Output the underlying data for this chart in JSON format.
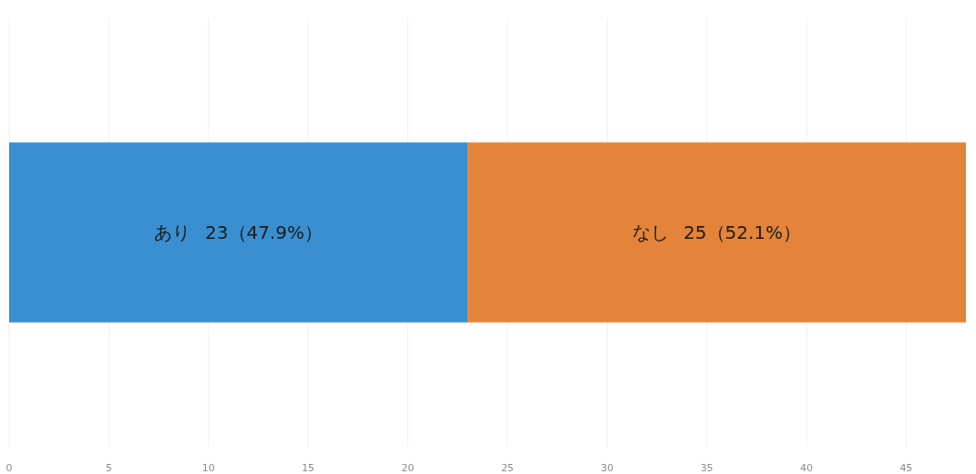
{
  "chart_data": {
    "type": "bar",
    "orientation": "horizontal",
    "stacked": true,
    "categories": [
      null
    ],
    "series": [
      {
        "name": "あり",
        "color": "#3a8fd0",
        "values": [
          23
        ],
        "value_labels": [
          "23（47.9%）"
        ]
      },
      {
        "name": "なし",
        "color": "#e3843a",
        "values": [
          25
        ],
        "value_labels": [
          "25（52.1%）"
        ]
      }
    ],
    "xlim": [
      0,
      48
    ],
    "xticks": [
      0,
      5,
      10,
      15,
      20,
      25,
      30,
      35,
      40,
      45
    ],
    "grid": "x"
  }
}
